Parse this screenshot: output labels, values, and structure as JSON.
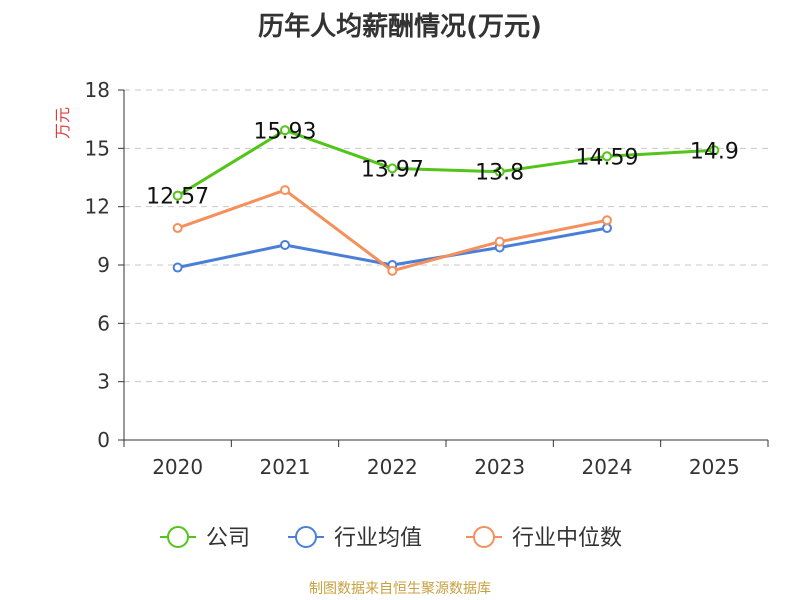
{
  "title": "历年人均薪酬情况(万元)",
  "source": "制图数据来自恒生聚源数据库",
  "colors": {
    "company": "#52c41a",
    "avg": "#4a7fd9",
    "median": "#f58f5b",
    "unit": "#e03c3c"
  },
  "chart_data": {
    "type": "line",
    "title": "历年人均薪酬情况(万元)",
    "ylabel": "万元",
    "xlabel": "",
    "categories": [
      "2020",
      "2021",
      "2022",
      "2023",
      "2024",
      "2025"
    ],
    "ylim": [
      0,
      18
    ],
    "yticks": [
      0,
      3,
      6,
      9,
      12,
      15,
      18
    ],
    "grid": true,
    "legend_position": "bottom",
    "series": [
      {
        "name": "公司",
        "values": [
          12.57,
          15.93,
          13.97,
          13.8,
          14.59,
          14.9
        ],
        "labels": [
          "12.57",
          "15.93",
          "13.97",
          "13.8",
          "14.59",
          "14.9"
        ],
        "color_key": "company"
      },
      {
        "name": "行业均值",
        "values": [
          8.87,
          10.03,
          9.0,
          9.9,
          10.9,
          null
        ],
        "labels": [],
        "color_key": "avg"
      },
      {
        "name": "行业中位数",
        "values": [
          10.9,
          12.85,
          8.7,
          10.2,
          11.3,
          null
        ],
        "labels": [],
        "color_key": "median"
      }
    ]
  }
}
